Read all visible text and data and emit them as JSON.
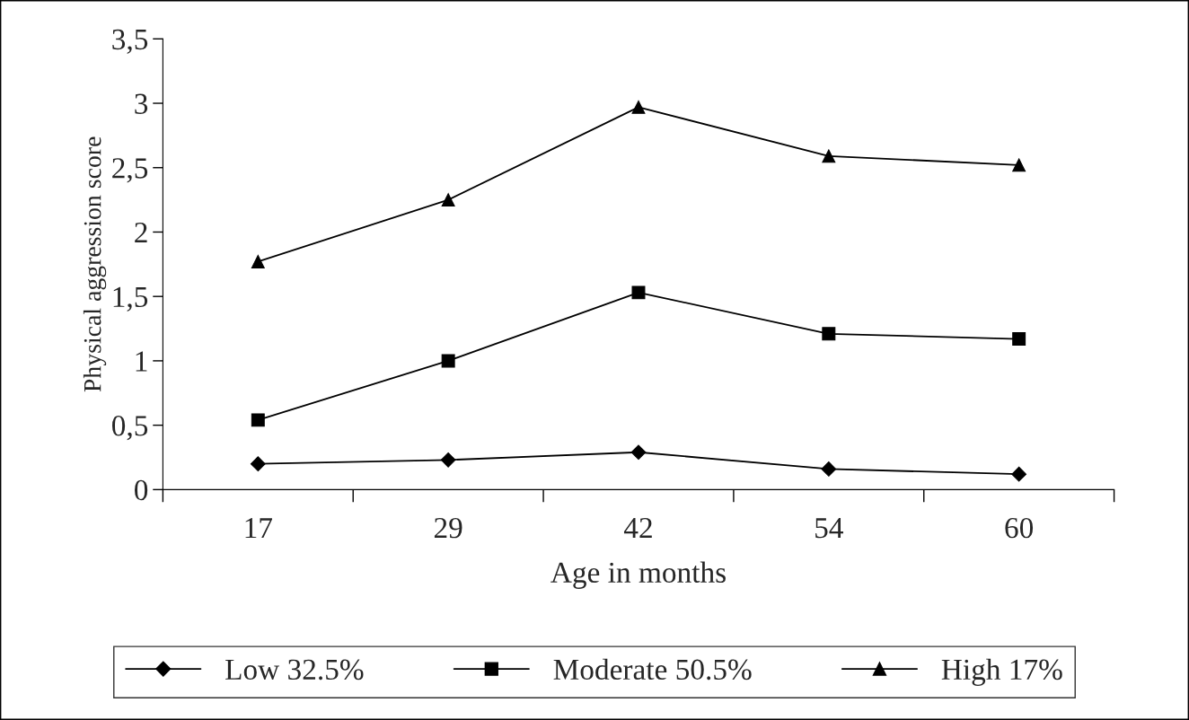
{
  "chart_data": {
    "type": "line",
    "xlabel": "Age in months",
    "ylabel": "Physical aggression score",
    "categories": [
      "17",
      "29",
      "42",
      "54",
      "60"
    ],
    "series": [
      {
        "name": "Low 32.5%",
        "color": "#000000",
        "marker": "diamond",
        "values": [
          0.2,
          0.23,
          0.29,
          0.16,
          0.12
        ]
      },
      {
        "name": "Moderate 50.5%",
        "color": "#000000",
        "marker": "square",
        "values": [
          0.54,
          1.0,
          1.53,
          1.21,
          1.17
        ]
      },
      {
        "name": "High 17%",
        "color": "#000000",
        "marker": "triangle",
        "values": [
          1.77,
          2.25,
          2.97,
          2.59,
          2.52
        ]
      }
    ],
    "ylim": [
      0,
      3.5
    ],
    "yticks": [
      0,
      {
        "value": 0.5,
        "label": "0,5"
      },
      1,
      {
        "value": 1.5,
        "label": "1,5"
      },
      2,
      {
        "value": 2.5,
        "label": "2,5"
      },
      3,
      {
        "value": 3.5,
        "label": "3,5"
      }
    ],
    "grid": false,
    "legend": "bottom",
    "line_style": "solid"
  }
}
